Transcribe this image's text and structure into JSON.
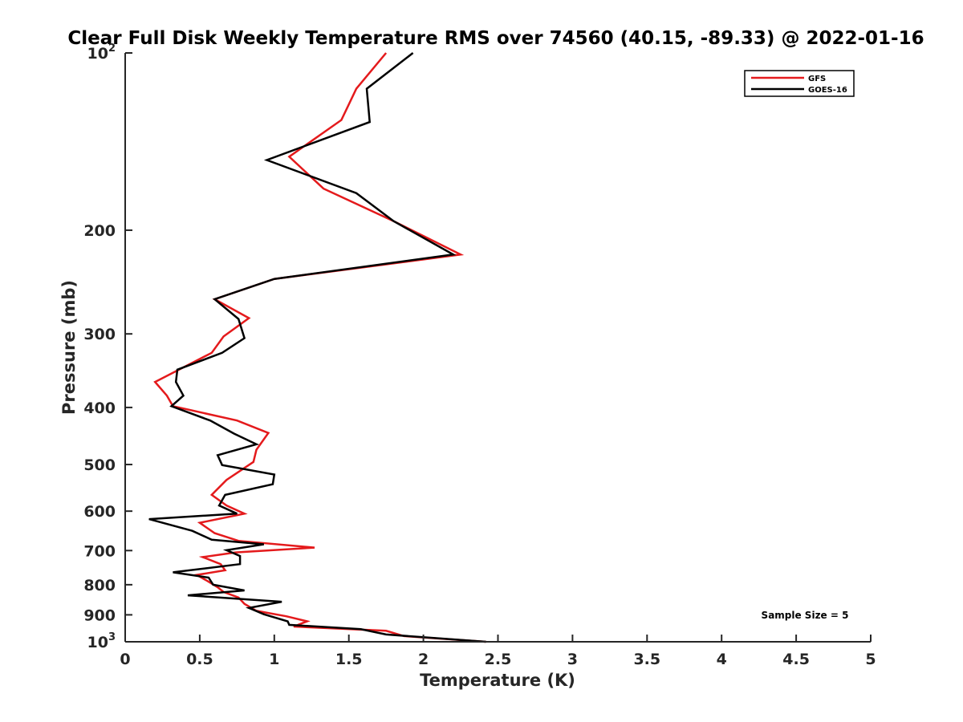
{
  "chart_data": {
    "type": "line",
    "title": "Clear Full Disk Weekly Temperature RMS over 74560 (40.15, -89.33) @ 2022-01-16",
    "xlabel": "Temperature (K)",
    "ylabel": "Pressure (mb)",
    "xlim": [
      0,
      5
    ],
    "ylim": [
      100,
      1000
    ],
    "yscale": "log",
    "y_reversed": true,
    "grid": false,
    "legend_position": "top-right",
    "xticks": [
      0,
      0.5,
      1,
      1.5,
      2,
      2.5,
      3,
      3.5,
      4,
      4.5,
      5
    ],
    "xtick_labels": [
      "0",
      "0.5",
      "1",
      "1.5",
      "2",
      "2.5",
      "3",
      "3.5",
      "4",
      "4.5",
      "5"
    ],
    "yticks": [
      100,
      200,
      300,
      400,
      500,
      600,
      700,
      800,
      900,
      1000
    ],
    "ytick_labels": [
      {
        "base": "10",
        "exp": "2"
      },
      {
        "base": "200",
        "exp": ""
      },
      {
        "base": "300",
        "exp": ""
      },
      {
        "base": "400",
        "exp": ""
      },
      {
        "base": "500",
        "exp": ""
      },
      {
        "base": "600",
        "exp": ""
      },
      {
        "base": "700",
        "exp": ""
      },
      {
        "base": "800",
        "exp": ""
      },
      {
        "base": "900",
        "exp": ""
      },
      {
        "base": "10",
        "exp": "3"
      }
    ],
    "annotation": "Sample Size = 5",
    "series": [
      {
        "name": "GFS",
        "color": "#e41a1c",
        "points": [
          [
            1.75,
            100
          ],
          [
            1.55,
            115
          ],
          [
            1.45,
            130
          ],
          [
            1.1,
            150
          ],
          [
            1.33,
            170
          ],
          [
            1.8,
            193
          ],
          [
            2.25,
            220
          ],
          [
            1.0,
            242
          ],
          [
            0.6,
            262
          ],
          [
            0.83,
            282
          ],
          [
            0.66,
            303
          ],
          [
            0.58,
            323
          ],
          [
            0.2,
            362
          ],
          [
            0.28,
            382
          ],
          [
            0.32,
            398
          ],
          [
            0.75,
            421
          ],
          [
            0.96,
            442
          ],
          [
            0.88,
            472
          ],
          [
            0.86,
            495
          ],
          [
            0.68,
            531
          ],
          [
            0.58,
            563
          ],
          [
            0.68,
            587
          ],
          [
            0.8,
            606
          ],
          [
            0.5,
            628
          ],
          [
            0.6,
            654
          ],
          [
            0.76,
            674
          ],
          [
            1.27,
            692
          ],
          [
            0.74,
            705
          ],
          [
            0.52,
            718
          ],
          [
            0.64,
            738
          ],
          [
            0.67,
            756
          ],
          [
            0.48,
            770
          ],
          [
            0.55,
            788
          ],
          [
            0.62,
            808
          ],
          [
            0.66,
            823
          ],
          [
            0.76,
            841
          ],
          [
            0.8,
            862
          ],
          [
            0.88,
            886
          ],
          [
            1.08,
            905
          ],
          [
            1.22,
            923
          ],
          [
            1.13,
            942
          ],
          [
            1.75,
            958
          ],
          [
            1.87,
            978
          ],
          [
            2.42,
            1000
          ]
        ]
      },
      {
        "name": "GOES-16",
        "color": "#000000",
        "points": [
          [
            1.93,
            100
          ],
          [
            1.62,
            115
          ],
          [
            1.64,
            131
          ],
          [
            0.95,
            152
          ],
          [
            1.55,
            173
          ],
          [
            1.8,
            193
          ],
          [
            2.2,
            220
          ],
          [
            1.0,
            242
          ],
          [
            0.6,
            262
          ],
          [
            0.76,
            283
          ],
          [
            0.8,
            305
          ],
          [
            0.65,
            323
          ],
          [
            0.35,
            345
          ],
          [
            0.34,
            362
          ],
          [
            0.39,
            382
          ],
          [
            0.31,
            398
          ],
          [
            0.57,
            421
          ],
          [
            0.73,
            443
          ],
          [
            0.88,
            462
          ],
          [
            0.62,
            482
          ],
          [
            0.65,
            501
          ],
          [
            1.0,
            520
          ],
          [
            0.99,
            540
          ],
          [
            0.67,
            563
          ],
          [
            0.63,
            587
          ],
          [
            0.75,
            606
          ],
          [
            0.16,
            619
          ],
          [
            0.45,
            648
          ],
          [
            0.58,
            671
          ],
          [
            0.93,
            683
          ],
          [
            0.68,
            699
          ],
          [
            0.77,
            715
          ],
          [
            0.77,
            738
          ],
          [
            0.32,
            762
          ],
          [
            0.56,
            778
          ],
          [
            0.59,
            800
          ],
          [
            0.8,
            818
          ],
          [
            0.42,
            834
          ],
          [
            1.05,
            855
          ],
          [
            0.83,
            876
          ],
          [
            0.93,
            898
          ],
          [
            1.09,
            923
          ],
          [
            1.1,
            936
          ],
          [
            1.58,
            952
          ],
          [
            1.75,
            972
          ],
          [
            2.42,
            1000
          ]
        ]
      }
    ]
  }
}
